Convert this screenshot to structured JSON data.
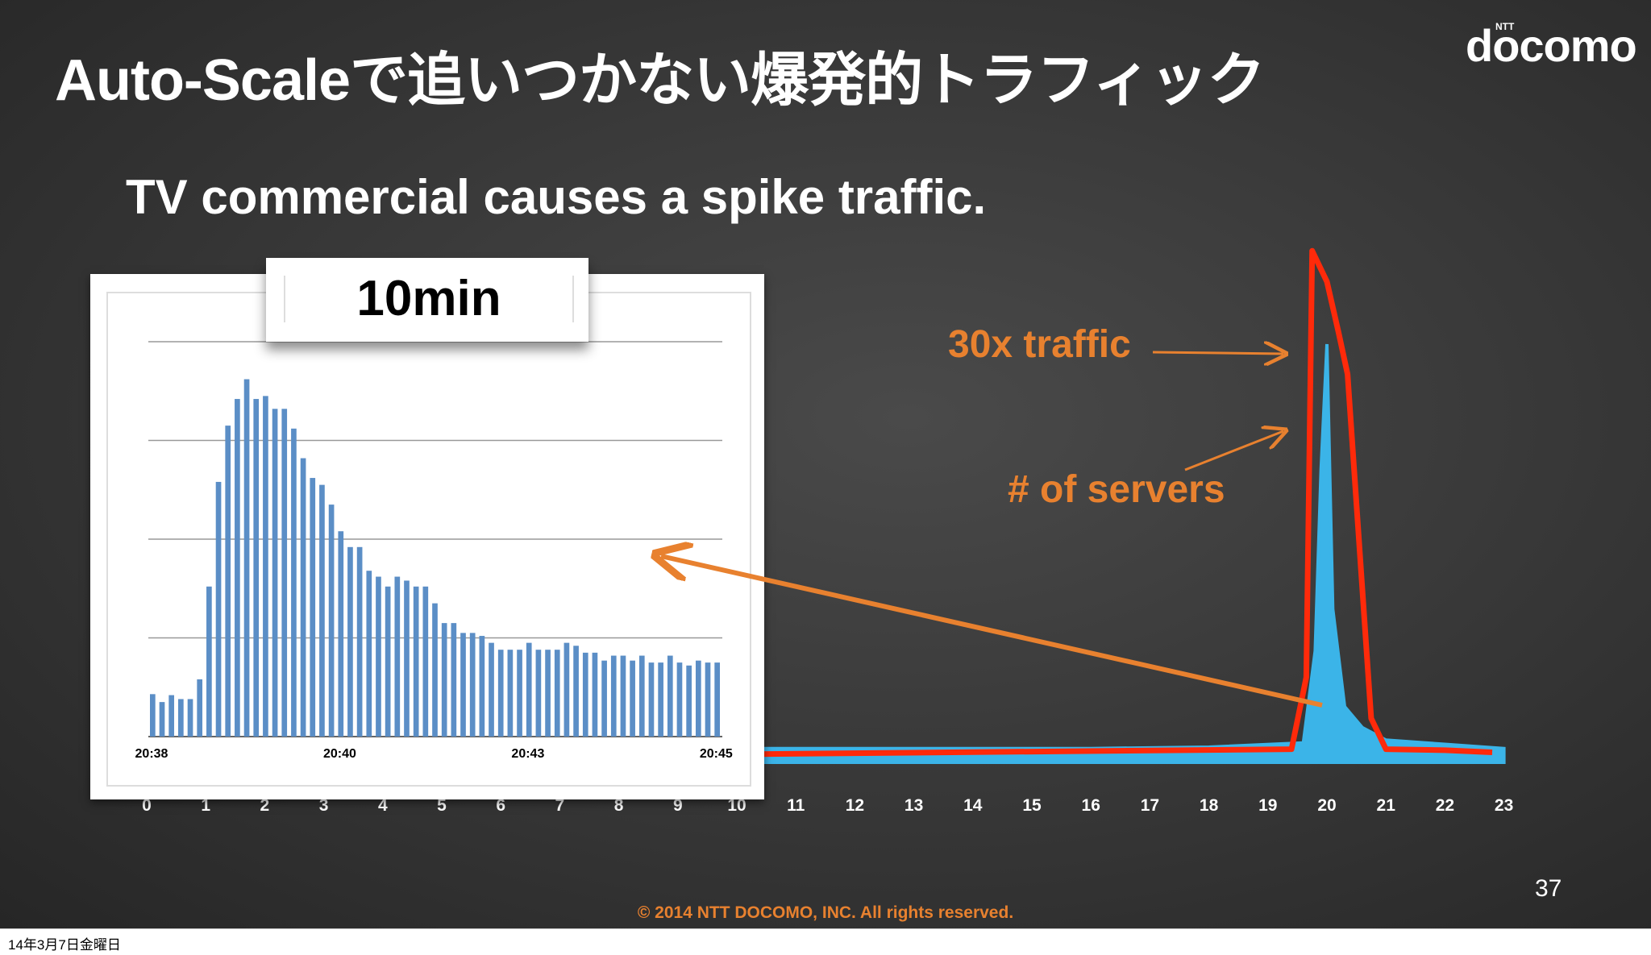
{
  "slide": {
    "title": "Auto-Scaleで追いつかない爆発的トラフィック",
    "subtitle": "TV commercial causes a spike traffic.",
    "logo": "docomo",
    "logo_small": "NTT",
    "page_number": "37",
    "footer": "© 2014  NTT DOCOMO, INC. All rights reserved.",
    "date": "14年3月7日金曜日"
  },
  "annotations": {
    "traffic_label": "30x traffic",
    "servers_label": "# of servers",
    "inset_label": "10min"
  },
  "colors": {
    "traffic": "#3bb4e8",
    "servers": "#ff2a0a",
    "accent": "#e8812f",
    "inset_bars": "#5b8ec6"
  },
  "chart_data": [
    {
      "type": "area",
      "x_ticks": [
        "0",
        "1",
        "2",
        "3",
        "4",
        "5",
        "6",
        "7",
        "8",
        "9",
        "10",
        "11",
        "12",
        "13",
        "14",
        "15",
        "16",
        "17",
        "18",
        "19",
        "20",
        "21",
        "22",
        "23"
      ],
      "xlim": [
        0,
        23
      ],
      "series": [
        {
          "name": "30x traffic",
          "x": [
            10,
            12,
            14,
            16,
            18,
            19.6,
            19.8,
            19.9,
            20.0,
            20.1,
            20.3,
            20.6,
            21,
            22,
            23
          ],
          "y": [
            1,
            1,
            1,
            1,
            1.1,
            1.4,
            8,
            21,
            30,
            11,
            4,
            2.5,
            1.6,
            1.3,
            1
          ]
        },
        {
          "name": "# of servers",
          "x": [
            10,
            19.4,
            19.65,
            19.75,
            20.0,
            20.2,
            20.35,
            20.75,
            21.0,
            22.0,
            22.8
          ],
          "y": [
            1,
            1.5,
            8.5,
            50,
            47,
            42,
            38,
            4.5,
            1.5,
            1.4,
            1.2
          ]
        }
      ]
    },
    {
      "type": "bar",
      "title": "10min",
      "x_tick_labels": [
        "20:38",
        "20:40",
        "20:43",
        "20:45"
      ],
      "x_tick_positions": [
        0,
        20,
        40,
        60
      ],
      "ylim": [
        0,
        4
      ],
      "gridlines": [
        1,
        2,
        3,
        4
      ],
      "values": [
        0.43,
        0.35,
        0.42,
        0.38,
        0.38,
        0.58,
        1.52,
        2.58,
        3.15,
        3.42,
        3.62,
        3.42,
        3.45,
        3.32,
        3.32,
        3.12,
        2.82,
        2.62,
        2.55,
        2.35,
        2.08,
        1.92,
        1.92,
        1.68,
        1.62,
        1.52,
        1.62,
        1.58,
        1.52,
        1.52,
        1.35,
        1.15,
        1.15,
        1.05,
        1.05,
        1.02,
        0.95,
        0.88,
        0.88,
        0.88,
        0.95,
        0.88,
        0.88,
        0.88,
        0.95,
        0.92,
        0.85,
        0.85,
        0.77,
        0.82,
        0.82,
        0.77,
        0.82,
        0.75,
        0.75,
        0.82,
        0.75,
        0.72,
        0.77,
        0.75,
        0.75
      ]
    }
  ]
}
